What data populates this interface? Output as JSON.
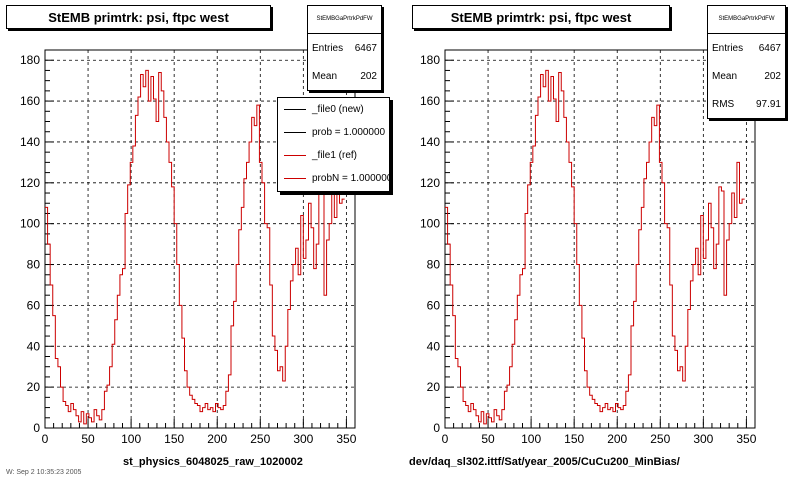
{
  "panels": [
    {
      "title": "StEMB primtrk: psi, ftpc west",
      "stats": {
        "name": "StEMBGaPrtrkPdFW",
        "rows": [
          {
            "label": "Entries",
            "value": "6467"
          },
          {
            "label": "Mean",
            "value": "202"
          }
        ]
      },
      "legend": [
        {
          "label": "_file0 (new)",
          "color": "#000000"
        },
        {
          "label": "prob = 1.000000",
          "color": "#000000"
        },
        {
          "label": "_file1 (ref)",
          "color": "#cc0000"
        },
        {
          "label": "probN = 1.000000",
          "color": "#cc0000"
        }
      ],
      "xcaption": "st_physics_6048025_raw_1020002"
    },
    {
      "title": "StEMB primtrk: psi, ftpc west",
      "stats": {
        "name": "StEMBGaPrtrkPdFW",
        "rows": [
          {
            "label": "Entries",
            "value": "6467"
          },
          {
            "label": "Mean",
            "value": "202"
          },
          {
            "label": "RMS",
            "value": "97.91"
          }
        ]
      },
      "xcaption": "dev/daq_sl302.ittf/Sat/year_2005/CuCu200_MinBias/"
    }
  ],
  "footer": "W: Sep 2 10:35:23 2005",
  "chart_data": [
    {
      "type": "histogram",
      "title": "StEMB primtrk: psi, ftpc west",
      "xlim": [
        0,
        360
      ],
      "ylim": [
        0,
        185
      ],
      "xticks": [
        0,
        50,
        100,
        150,
        200,
        250,
        300,
        350
      ],
      "yticks": [
        0,
        20,
        40,
        60,
        80,
        100,
        120,
        140,
        160,
        180
      ],
      "grid": true,
      "legend_position": "top-right",
      "bin_width": 3,
      "series": [
        {
          "name": "_file1 (ref)",
          "color": "#cc0000",
          "values": [
            108,
            90,
            70,
            55,
            34,
            30,
            20,
            13,
            11,
            8,
            12,
            9,
            6,
            3,
            8,
            2,
            7,
            5,
            3,
            9,
            6,
            4,
            9,
            18,
            21,
            30,
            41,
            53,
            65,
            75,
            78,
            105,
            119,
            130,
            138,
            153,
            162,
            173,
            167,
            175,
            160,
            172,
            161,
            150,
            174,
            165,
            152,
            140,
            130,
            118,
            100,
            80,
            60,
            44,
            28,
            20,
            16,
            14,
            12,
            11,
            8,
            10,
            12,
            9,
            10,
            8,
            12,
            10,
            9,
            11,
            18,
            26,
            50,
            62,
            80,
            97,
            108,
            122,
            130,
            140,
            152,
            148,
            158,
            130,
            120,
            100,
            98,
            70,
            45,
            38,
            28,
            30,
            23,
            40,
            58,
            72,
            80,
            88,
            75,
            104,
            83,
            92,
            110,
            98,
            78,
            90,
            118,
            116,
            65,
            92,
            100,
            115,
            103,
            130,
            110,
            112
          ]
        }
      ]
    },
    {
      "type": "histogram",
      "title": "StEMB primtrk: psi, ftpc west",
      "xlim": [
        0,
        360
      ],
      "ylim": [
        0,
        185
      ],
      "xticks": [
        0,
        50,
        100,
        150,
        200,
        250,
        300,
        350
      ],
      "yticks": [
        0,
        20,
        40,
        60,
        80,
        100,
        120,
        140,
        160,
        180
      ],
      "grid": true,
      "bin_width": 3,
      "series": [
        {
          "name": "",
          "color": "#cc0000",
          "values": [
            108,
            90,
            70,
            55,
            34,
            30,
            20,
            13,
            11,
            8,
            12,
            9,
            6,
            3,
            8,
            2,
            7,
            5,
            3,
            9,
            6,
            4,
            9,
            18,
            21,
            30,
            41,
            53,
            65,
            75,
            78,
            105,
            119,
            130,
            138,
            153,
            162,
            173,
            167,
            175,
            160,
            172,
            161,
            150,
            174,
            165,
            152,
            140,
            130,
            118,
            100,
            80,
            60,
            44,
            28,
            20,
            16,
            14,
            12,
            11,
            8,
            10,
            12,
            9,
            10,
            8,
            12,
            10,
            9,
            11,
            18,
            26,
            50,
            62,
            80,
            97,
            108,
            122,
            130,
            140,
            152,
            148,
            158,
            130,
            120,
            100,
            98,
            70,
            45,
            38,
            28,
            30,
            23,
            40,
            58,
            72,
            80,
            88,
            75,
            104,
            83,
            92,
            110,
            98,
            78,
            90,
            118,
            116,
            65,
            92,
            100,
            115,
            103,
            130,
            110,
            112
          ]
        }
      ]
    }
  ]
}
